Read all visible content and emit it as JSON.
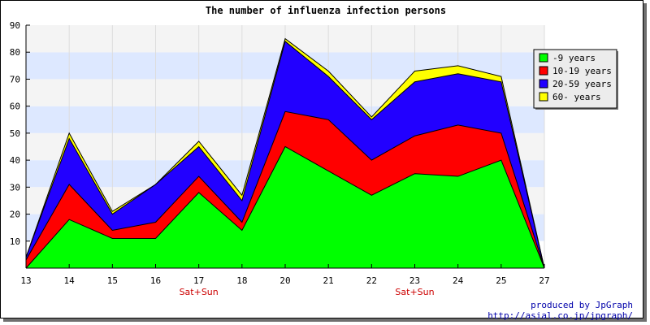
{
  "chart_data": {
    "type": "area",
    "stacked": true,
    "title": "The number of influenza infection persons",
    "xlabel": "",
    "ylabel": "",
    "x": [
      13,
      14,
      15,
      16,
      17,
      18,
      20,
      21,
      22,
      23,
      24,
      25,
      27
    ],
    "x_sublabels": [
      "",
      "",
      "",
      "",
      "Sat+Sun",
      "",
      "",
      "",
      "",
      "Sat+Sun",
      "",
      "",
      ""
    ],
    "ylim": [
      0,
      90
    ],
    "yticks": [
      10,
      20,
      30,
      40,
      50,
      60,
      70,
      80,
      90
    ],
    "grid": true,
    "legend_position": "top-right",
    "series": [
      {
        "name": "-9 years",
        "color": "#00ff00",
        "values": [
          0,
          18,
          11,
          11,
          28,
          14,
          45,
          36,
          27,
          35,
          34,
          40,
          0
        ]
      },
      {
        "name": "10-19 years",
        "color": "#ff0000",
        "values": [
          3,
          13,
          3,
          6,
          6,
          3,
          13,
          19,
          13,
          14,
          19,
          10,
          0
        ]
      },
      {
        "name": "20-59 years",
        "color": "#2200ff",
        "values": [
          1,
          17,
          6,
          14,
          11,
          8,
          26,
          16,
          15,
          20,
          19,
          19,
          0
        ]
      },
      {
        "name": "60- years",
        "color": "#ffff00",
        "values": [
          0,
          2,
          1,
          0,
          2,
          2,
          1,
          2,
          1,
          4,
          3,
          2,
          0
        ]
      }
    ]
  },
  "credit": {
    "line1": "produced by JpGraph",
    "line2": "http://asial.co.jp/jpgraph/"
  }
}
